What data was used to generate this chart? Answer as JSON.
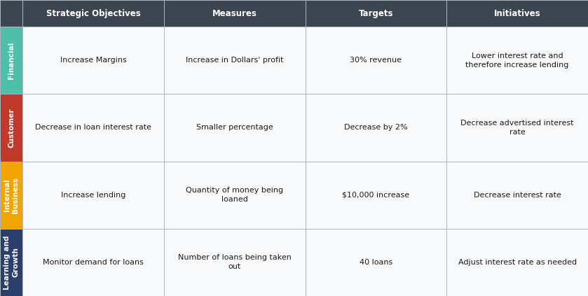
{
  "header_bg": "#3d4550",
  "header_text_color": "#ffffff",
  "header_font_size": 8.5,
  "header_labels": [
    "Strategic Objectives",
    "Measures",
    "Targets",
    "Initiatives"
  ],
  "row_labels": [
    "Financial",
    "Customer",
    "Internal\nBusiness",
    "Learning and\nGrowth"
  ],
  "row_colors": [
    "#4dbfaa",
    "#c0392b",
    "#f0a500",
    "#2c3e6b"
  ],
  "cell_bg": "#f7f9fb",
  "cell_text_color": "#1a1a1a",
  "cell_font_size": 8,
  "grid_color": "#aab4be",
  "table_bg": "#ffffff",
  "rows": [
    [
      "Increase Margins",
      "Increase in Dollars' profit",
      "30% revenue",
      "Lower interest rate and\ntherefore increase lending"
    ],
    [
      "Decrease in loan interest rate",
      "Smaller percentage",
      "Decrease by 2%",
      "Decrease advertised interest\nrate"
    ],
    [
      "Increase lending",
      "Quantity of money being\nloaned",
      "$10,000 increase",
      "Decrease interest rate"
    ],
    [
      "Monitor demand for loans",
      "Number of loans being taken\nout",
      "40 loans",
      "Adjust interest rate as needed"
    ]
  ],
  "fig_width": 8.39,
  "fig_height": 4.23,
  "dpi": 100
}
